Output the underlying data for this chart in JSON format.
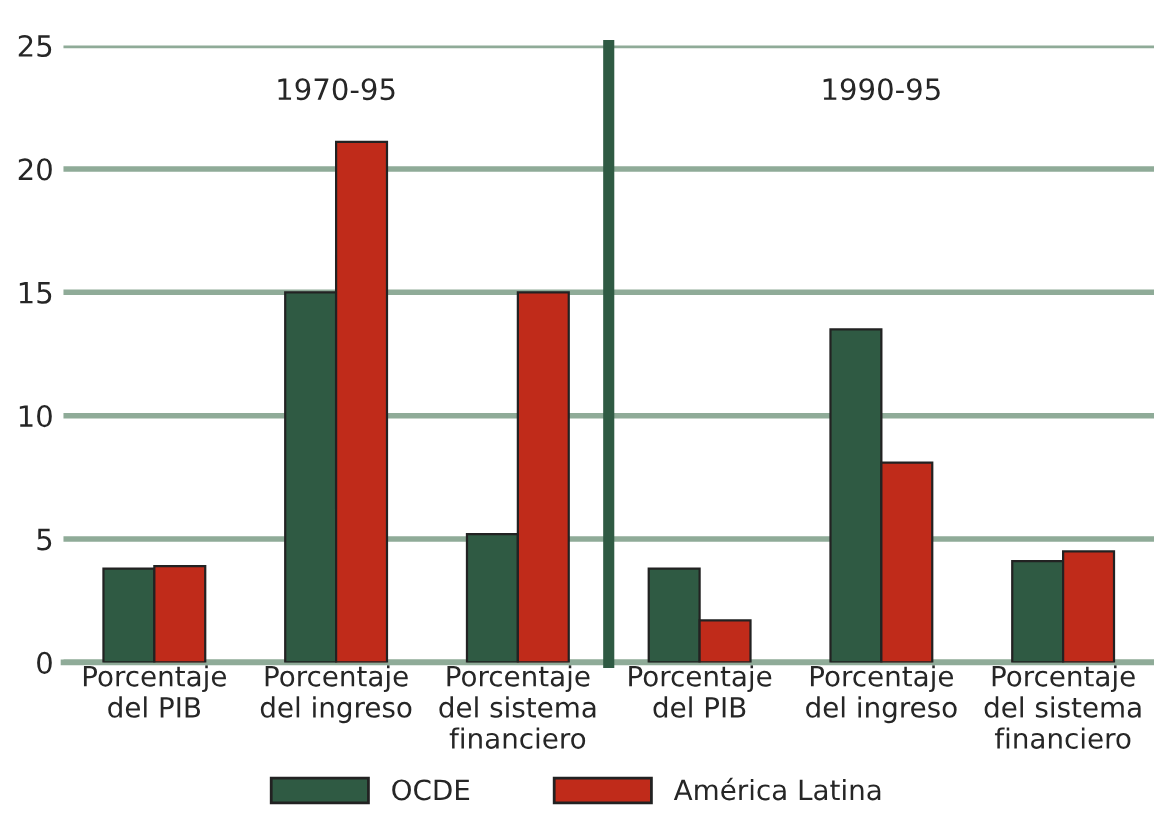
{
  "chart_data": [
    {
      "type": "bar",
      "categories": [
        "Porcentaje\ndel PIB",
        "Porcentaje\ndel ingreso",
        "Porcentaje\ndel sistema\nfinanciero"
      ],
      "series": [
        {
          "name": "OCDE",
          "color": "#2f5a43",
          "values": [
            3.8,
            15.0,
            5.2
          ]
        },
        {
          "name": "América Latina",
          "color": "#c02b1a",
          "values": [
            3.9,
            21.1,
            15.0
          ]
        }
      ],
      "ylim": [
        0,
        25
      ],
      "yticks": [
        0,
        5,
        10,
        15,
        20,
        25
      ],
      "grid": "y",
      "legend": "bottom",
      "annotations": [
        "1970-95"
      ]
    },
    {
      "type": "bar",
      "categories": [
        "Porcentaje\ndel PIB",
        "Porcentaje\ndel ingreso",
        "Porcentaje\ndel sistema\nfinanciero"
      ],
      "series": [
        {
          "color": "#2f5a43",
          "values": [
            3.8,
            13.5,
            4.1
          ]
        },
        {
          "color": "#c02b1a",
          "values": [
            1.7,
            8.1,
            4.5
          ]
        }
      ],
      "ylim": [
        0,
        25
      ],
      "yticks": [
        0,
        5,
        10,
        15,
        20,
        25
      ],
      "grid": "y",
      "tick_labels": "x",
      "annotations": [
        "1990-95"
      ]
    }
  ]
}
